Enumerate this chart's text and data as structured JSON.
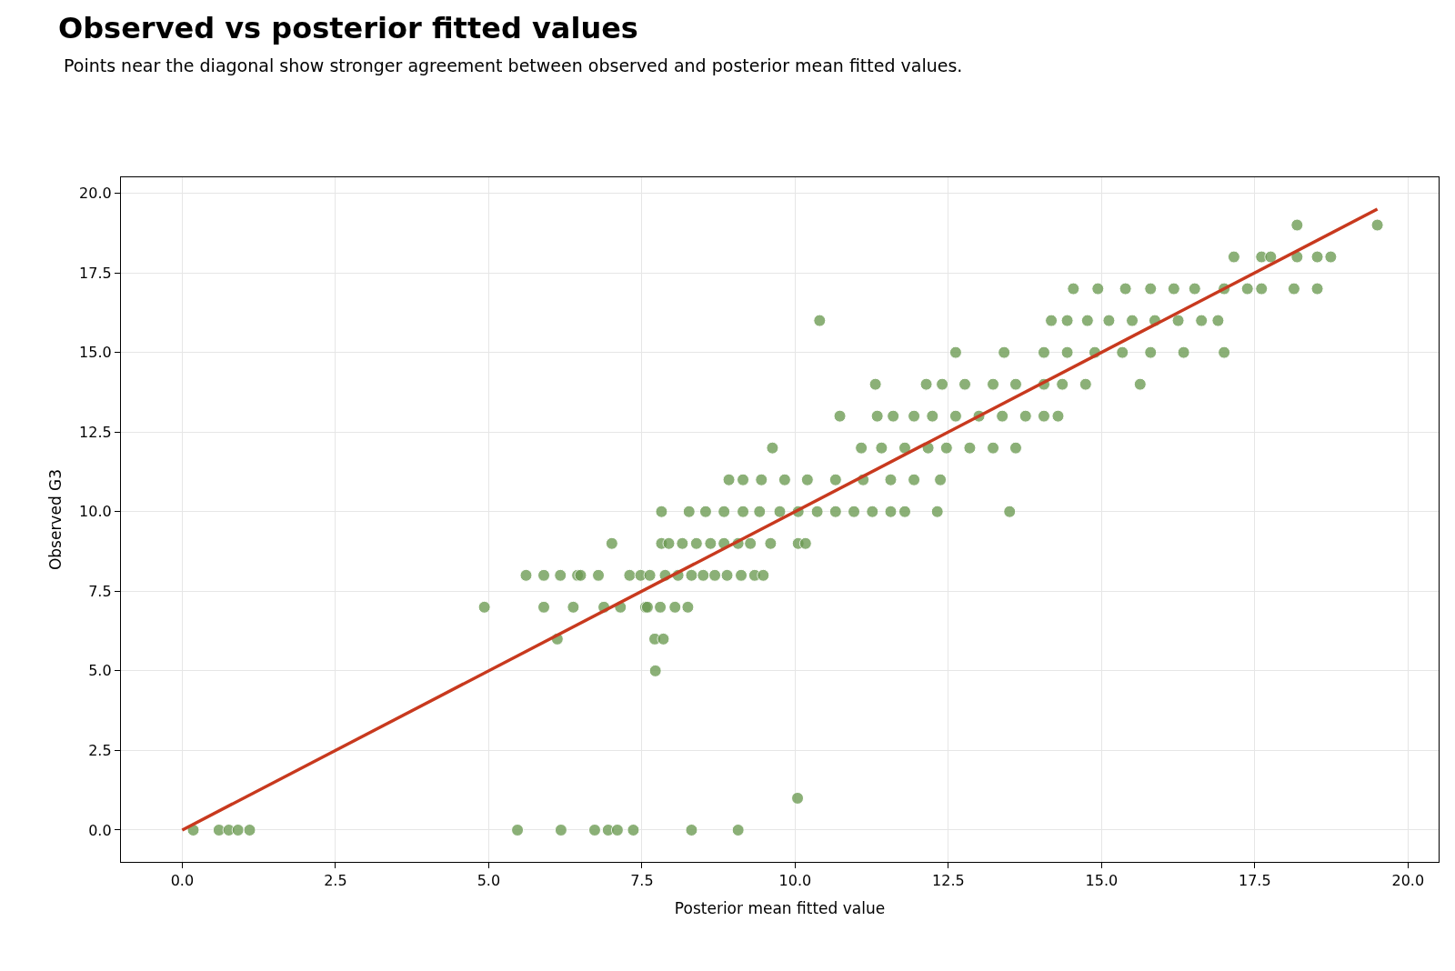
{
  "chart_data": {
    "type": "scatter",
    "title": "Observed vs posterior fitted values",
    "subtitle": "Points near the diagonal show stronger agreement between observed and posterior mean fitted values.",
    "xlabel": "Posterior mean fitted value",
    "ylabel": "Observed G3",
    "xlim": [
      -1,
      20.5
    ],
    "ylim": [
      -1,
      20.5
    ],
    "xticks": [
      {
        "value": 0,
        "label": "0.0"
      },
      2.5,
      {
        "value": 5,
        "label": "5.0"
      },
      7.5,
      {
        "value": 10,
        "label": "10.0"
      },
      12.5,
      {
        "value": 15,
        "label": "15.0"
      },
      17.5,
      {
        "value": 20,
        "label": "20.0"
      }
    ],
    "yticks": [
      {
        "value": 0,
        "label": "0.0"
      },
      2.5,
      {
        "value": 5,
        "label": "5.0"
      },
      7.5,
      {
        "value": 10,
        "label": "10.0"
      },
      12.5,
      {
        "value": 15,
        "label": "15.0"
      },
      17.5,
      {
        "value": 20,
        "label": "20.0"
      }
    ],
    "grid": true,
    "marker": "circle",
    "series": [
      {
        "color": "#6b9a52",
        "x": [
          0.18,
          0.6,
          0.76,
          0.91,
          1.1,
          5.47,
          6.18,
          6.73,
          6.95,
          7.1,
          7.36,
          8.31,
          9.07,
          10.04,
          7.72,
          6.12,
          7.71,
          7.85,
          4.93,
          5.9,
          6.38,
          6.88,
          7.15,
          7.56,
          7.59,
          7.8,
          8.04,
          8.25,
          5.61,
          5.9,
          6.17,
          6.45,
          6.5,
          6.79,
          7.3,
          7.48,
          7.63,
          7.88,
          8.09,
          8.31,
          8.5,
          8.69,
          8.89,
          9.12,
          9.34,
          9.48,
          7.01,
          7.82,
          7.94,
          8.16,
          8.39,
          8.62,
          8.84,
          9.07,
          9.27,
          9.6,
          10.05,
          10.17,
          7.82,
          8.27,
          8.54,
          8.84,
          9.15,
          9.42,
          9.75,
          10.05,
          10.36,
          10.66,
          10.96,
          11.26,
          11.56,
          11.79,
          12.32,
          13.5,
          8.92,
          9.15,
          9.45,
          9.83,
          10.2,
          10.66,
          11.11,
          11.56,
          11.94,
          12.37,
          9.63,
          11.08,
          11.41,
          11.79,
          12.17,
          12.47,
          12.85,
          13.23,
          13.6,
          10.73,
          11.34,
          11.6,
          11.94,
          12.24,
          12.62,
          13.0,
          13.38,
          13.76,
          14.06,
          14.29,
          11.31,
          12.14,
          12.4,
          12.77,
          13.23,
          13.6,
          14.06,
          14.36,
          14.74,
          15.63,
          12.62,
          13.41,
          14.06,
          14.44,
          14.89,
          15.34,
          15.8,
          16.34,
          17.0,
          10.4,
          14.18,
          14.44,
          14.77,
          15.12,
          15.5,
          15.87,
          16.25,
          16.63,
          16.9,
          14.54,
          14.94,
          15.39,
          15.8,
          16.18,
          16.52,
          17.0,
          17.38,
          17.61,
          18.14,
          18.52,
          17.16,
          17.61,
          17.76,
          18.19,
          18.52,
          18.74,
          18.19,
          19.5
        ],
        "values": [
          0,
          0,
          0,
          0,
          0,
          0,
          0,
          0,
          0,
          0,
          0,
          0,
          0,
          1,
          5,
          6,
          6,
          6,
          7,
          7,
          7,
          7,
          7,
          7,
          7,
          7,
          7,
          7,
          8,
          8,
          8,
          8,
          8,
          8,
          8,
          8,
          8,
          8,
          8,
          8,
          8,
          8,
          8,
          8,
          8,
          8,
          9,
          9,
          9,
          9,
          9,
          9,
          9,
          9,
          9,
          9,
          9,
          9,
          10,
          10,
          10,
          10,
          10,
          10,
          10,
          10,
          10,
          10,
          10,
          10,
          10,
          10,
          10,
          10,
          11,
          11,
          11,
          11,
          11,
          11,
          11,
          11,
          11,
          11,
          12,
          12,
          12,
          12,
          12,
          12,
          12,
          12,
          12,
          13,
          13,
          13,
          13,
          13,
          13,
          13,
          13,
          13,
          13,
          13,
          14,
          14,
          14,
          14,
          14,
          14,
          14,
          14,
          14,
          14,
          15,
          15,
          15,
          15,
          15,
          15,
          15,
          15,
          15,
          16,
          16,
          16,
          16,
          16,
          16,
          16,
          16,
          16,
          16,
          17,
          17,
          17,
          17,
          17,
          17,
          17,
          17,
          17,
          17,
          17,
          18,
          18,
          18,
          18,
          18,
          18,
          19,
          19
        ]
      },
      {
        "type": "line",
        "color": "#c8391e",
        "marker": "none",
        "line_style": "solid",
        "x": [
          0,
          19.5
        ],
        "values": [
          0,
          19.5
        ]
      }
    ]
  }
}
